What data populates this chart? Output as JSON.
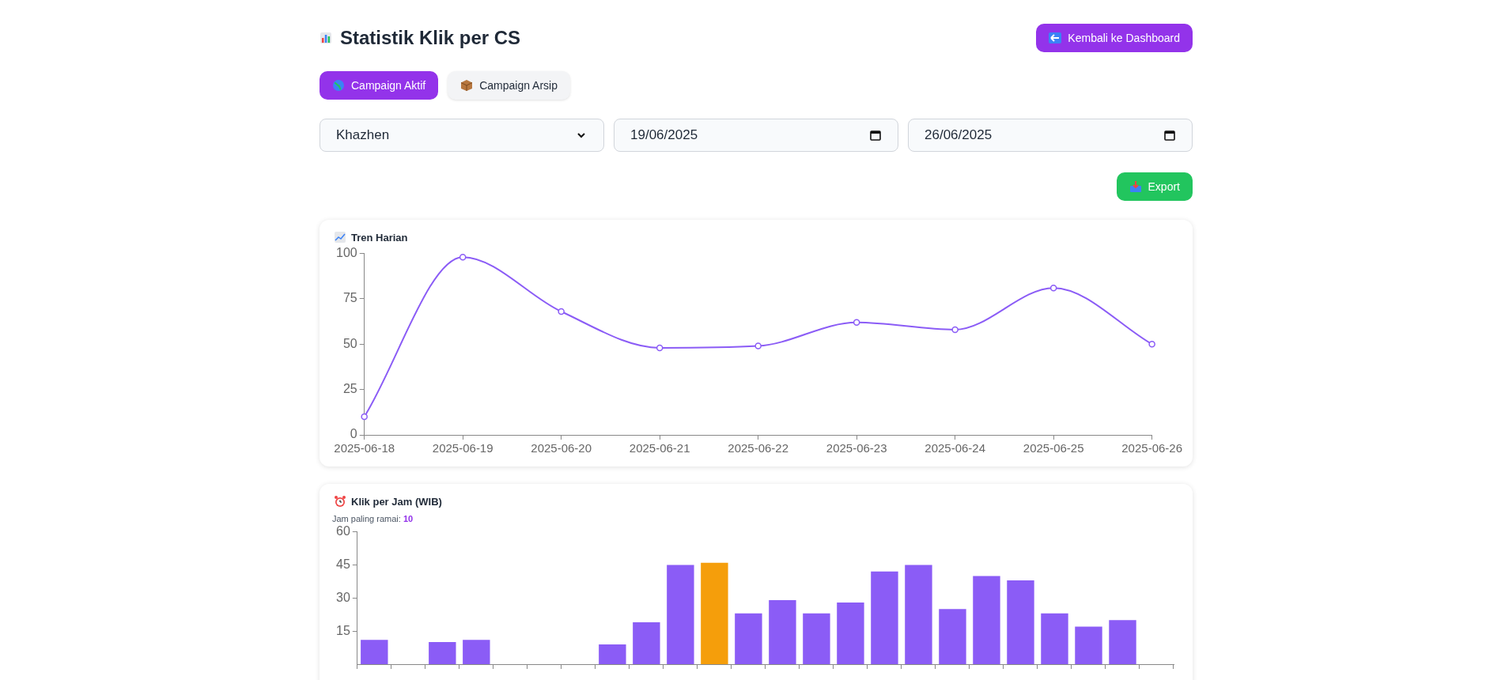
{
  "chart_data": [
    {
      "type": "other",
      "title": "Statistik Klik per CS",
      "annotations": [
        "Kembali ke Dashboard",
        "Campaign Aktif",
        "Campaign Arsip",
        "Khazhen",
        "19/06/2025",
        "26/06/2025",
        "Export"
      ]
    },
    {
      "type": "line",
      "title": "Tren Harian",
      "categories": [
        "2025-06-18",
        "2025-06-19",
        "2025-06-20",
        "2025-06-21",
        "2025-06-22",
        "2025-06-23",
        "2025-06-24",
        "2025-06-25",
        "2025-06-26"
      ],
      "values": [
        10,
        98,
        68,
        48,
        49,
        62,
        58,
        81,
        50
      ],
      "color": "#8b5cf6",
      "ylim": [
        0,
        100
      ],
      "yticks": [
        0,
        25,
        50,
        75,
        100
      ],
      "marker": "circle",
      "grid": false
    },
    {
      "type": "bar",
      "title": "Klik per Jam (WIB)",
      "subtitle": "Jam paling ramai:",
      "annotations": [
        "10"
      ],
      "categories": [
        null,
        null,
        null,
        null,
        null,
        null,
        null,
        null,
        null,
        null,
        null,
        null,
        null,
        null,
        null,
        null,
        null,
        null,
        null,
        null,
        null,
        null,
        null,
        null
      ],
      "values": [
        11,
        null,
        10,
        11,
        null,
        null,
        null,
        9,
        19,
        45,
        46,
        23,
        29,
        23,
        28,
        42,
        45,
        25,
        40,
        38,
        23,
        17,
        20,
        null
      ],
      "colors": [
        "#8b5cf6",
        "#8b5cf6",
        "#8b5cf6",
        "#8b5cf6",
        "#8b5cf6",
        "#8b5cf6",
        "#8b5cf6",
        "#8b5cf6",
        "#8b5cf6",
        "#8b5cf6",
        "#f59e0b",
        "#8b5cf6",
        "#8b5cf6",
        "#8b5cf6",
        "#8b5cf6",
        "#8b5cf6",
        "#8b5cf6",
        "#8b5cf6",
        "#8b5cf6",
        "#8b5cf6",
        "#8b5cf6",
        "#8b5cf6",
        "#8b5cf6",
        "#8b5cf6"
      ],
      "ylim": [
        0,
        60
      ],
      "yticks": [
        15,
        30,
        45,
        60
      ],
      "grid": false
    }
  ]
}
